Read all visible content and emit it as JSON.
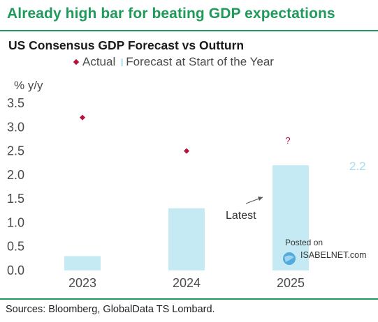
{
  "header": {
    "headline": "Already high bar for beating GDP expectations"
  },
  "chart_data": {
    "type": "bar",
    "title": "US Consensus GDP Forecast vs Outturn",
    "ylabel": "% y/y",
    "xlabel": "",
    "categories": [
      "2023",
      "2024",
      "2025"
    ],
    "ylim": [
      0,
      3.5
    ],
    "yticks": [
      "3.5",
      "3.0",
      "2.5",
      "2.0",
      "1.5",
      "1.0",
      "0.5",
      "0.0"
    ],
    "grid": false,
    "legend_position": "top",
    "series": [
      {
        "name": "Actual",
        "kind": "marker",
        "color": "#b5123c",
        "values": [
          3.2,
          2.5,
          null
        ]
      },
      {
        "name": "Forecast at Start of the Year",
        "kind": "bar",
        "color": "#c5eaf3",
        "values": [
          0.3,
          1.3,
          2.2
        ]
      }
    ],
    "annotations": {
      "question": "?",
      "value_label": "2.2",
      "latest": "Latest"
    }
  },
  "footer": {
    "source": "Sources: Bloomberg, GlobalData TS Lombard."
  },
  "watermark": {
    "line1": "Posted on",
    "line2": "ISABELNET.com"
  }
}
